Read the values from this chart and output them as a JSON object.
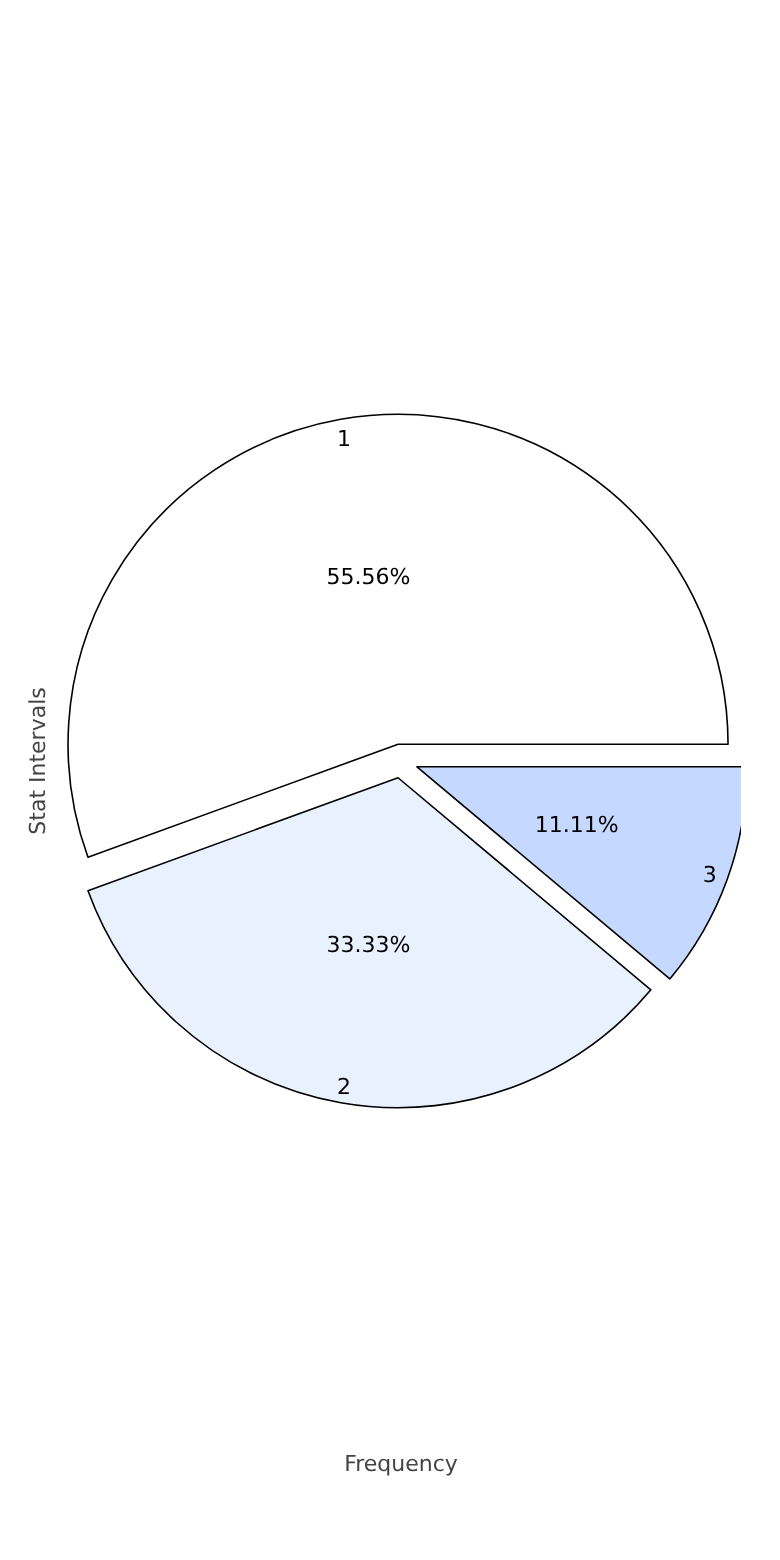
{
  "chart_data": {
    "type": "pie",
    "xlabel": "Frequency",
    "ylabel": "Stat Intervals",
    "categories": [
      "1",
      "2",
      "3"
    ],
    "values": [
      55.56,
      33.33,
      11.11
    ],
    "value_labels": [
      "55.56%",
      "33.33%",
      "11.11%"
    ],
    "colors": [
      "#ffffff",
      "#eaf1fe",
      "#c5d8ff"
    ]
  }
}
